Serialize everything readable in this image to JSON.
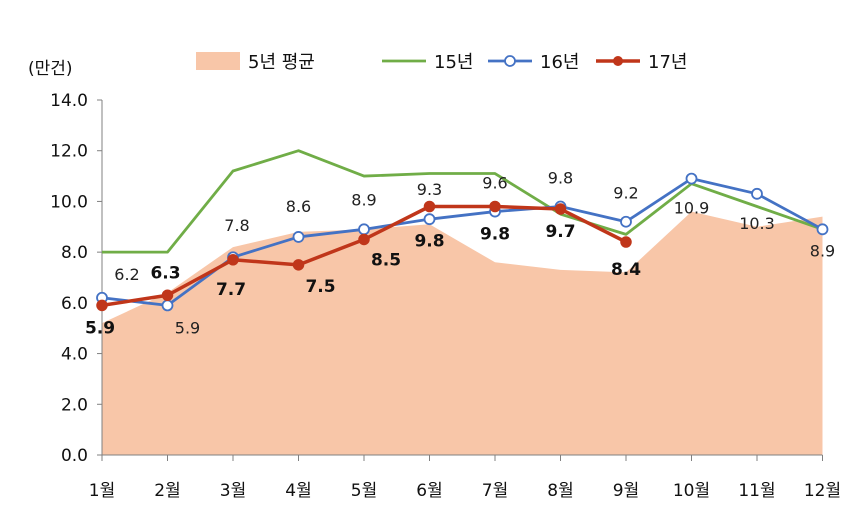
{
  "chart_data": {
    "type": "line",
    "ylabel": "(만건)",
    "ylim": [
      0,
      14
    ],
    "yticks": [
      "0.0",
      "2.0",
      "4.0",
      "6.0",
      "8.0",
      "10.0",
      "12.0",
      "14.0"
    ],
    "categories": [
      "1월",
      "2월",
      "3월",
      "4월",
      "5월",
      "6월",
      "7월",
      "8월",
      "9월",
      "10월",
      "11월",
      "12월"
    ],
    "legend_position": "top",
    "grid": false,
    "series": [
      {
        "name": "5년 평균",
        "kind": "area",
        "color": "#F8C6A8",
        "values": [
          5.2,
          6.4,
          8.2,
          8.8,
          8.9,
          9.1,
          7.6,
          7.3,
          7.2,
          9.6,
          9.0,
          9.4
        ],
        "labels": []
      },
      {
        "name": "15년",
        "kind": "line",
        "color": "#70AD47",
        "values": [
          8.0,
          8.0,
          11.2,
          12.0,
          11.0,
          11.1,
          11.1,
          9.5,
          8.7,
          10.7,
          9.8,
          8.9
        ],
        "labels": []
      },
      {
        "name": "16년",
        "kind": "line-marker",
        "color": "#4472C4",
        "values": [
          6.2,
          5.9,
          7.8,
          8.6,
          8.9,
          9.3,
          9.6,
          9.8,
          9.2,
          10.9,
          10.3,
          8.9
        ],
        "labels": [
          "6.2",
          "5.9",
          "7.8",
          "8.6",
          "8.9",
          "9.3",
          "9.6",
          "9.8",
          "9.2",
          "10.9",
          "10.3",
          "8.9"
        ]
      },
      {
        "name": "17년",
        "kind": "line-marker",
        "color": "#C0361A",
        "values": [
          5.9,
          6.3,
          7.7,
          7.5,
          8.5,
          9.8,
          9.8,
          9.7,
          8.4,
          null,
          null,
          null
        ],
        "labels": [
          "5.9",
          "6.3",
          "7.7",
          "7.5",
          "8.5",
          "9.8",
          "9.8",
          "9.7",
          "8.4",
          "",
          "",
          ""
        ]
      }
    ]
  }
}
